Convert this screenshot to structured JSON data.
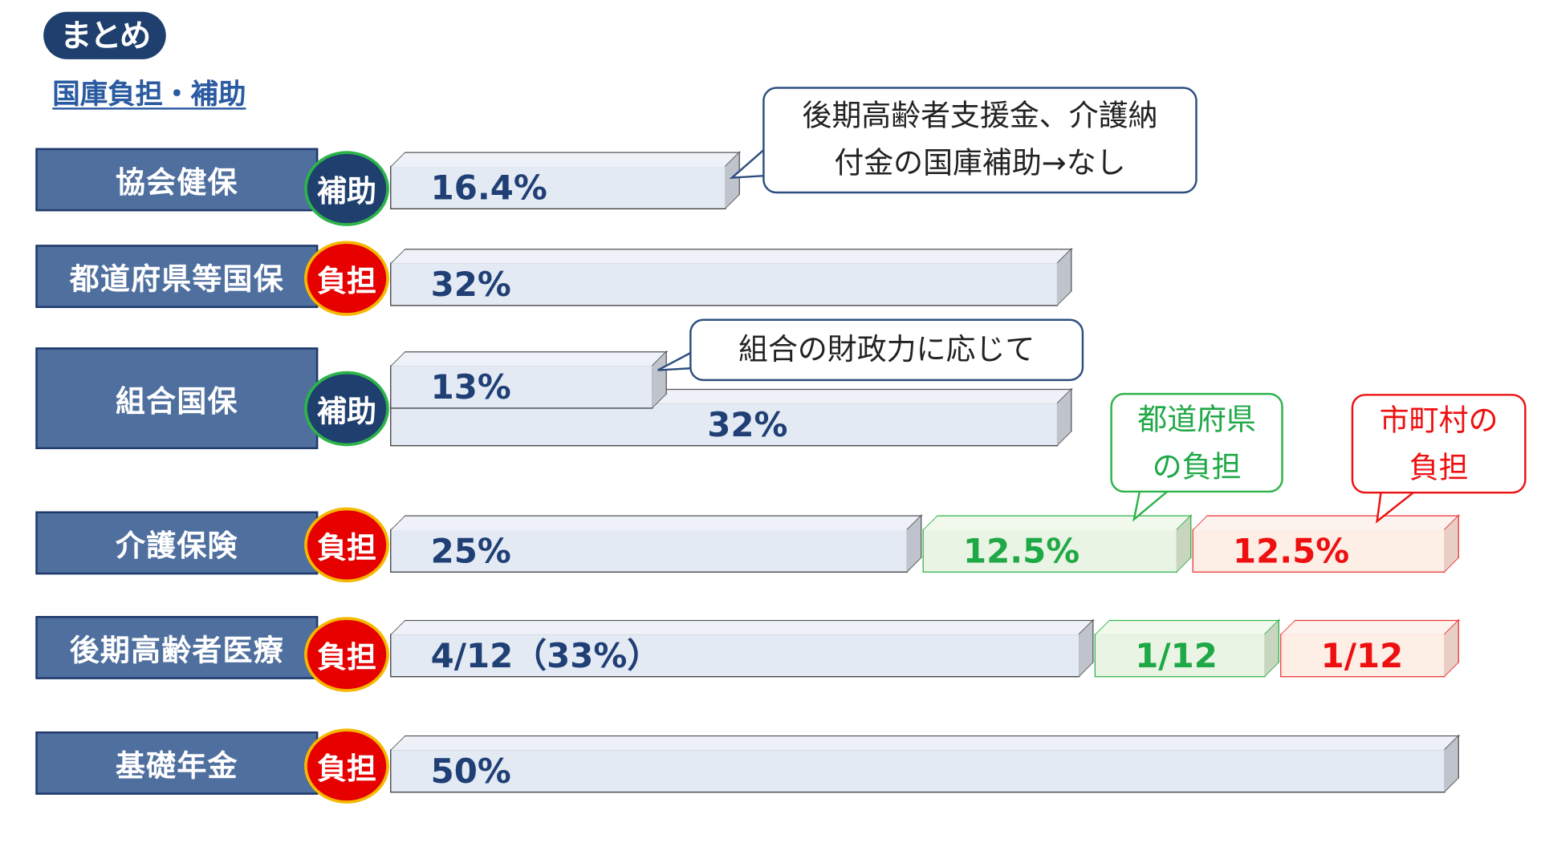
{
  "badge": "まとめ",
  "title": "国庫負担・補助",
  "rows": [
    {
      "label": "協会健保",
      "type": "補助",
      "bars": [
        "16.4%"
      ]
    },
    {
      "label": "都道府県等国保",
      "type": "負担",
      "bars": [
        "32%"
      ]
    },
    {
      "label": "組合国保",
      "type": "補助",
      "bars": [
        "13%",
        "32%"
      ]
    },
    {
      "label": "介護保険",
      "type": "負担",
      "bars": [
        "25%",
        "12.5%",
        "12.5%"
      ]
    },
    {
      "label": "後期高齢者医療",
      "type": "負担",
      "bars": [
        "4/12（33%）",
        "1/12",
        "1/12"
      ]
    },
    {
      "label": "基礎年金",
      "type": "負担",
      "bars": [
        "50%"
      ]
    }
  ],
  "callouts": {
    "kyokai": [
      "後期高齢者支援金、介護納",
      "付金の国庫補助→なし"
    ],
    "kumiai": "組合の財政力に応じて",
    "prefecture": [
      "都道府県",
      "の負担"
    ],
    "municipal": [
      "市町村の",
      "負担"
    ]
  },
  "colors": {
    "subsidy": "#1f3f6e",
    "burden": "#e60000",
    "prefecture": "#2db34a",
    "municipal": "#ee1010",
    "bar": "#e4eaf4",
    "label": "#4f6f9f"
  }
}
